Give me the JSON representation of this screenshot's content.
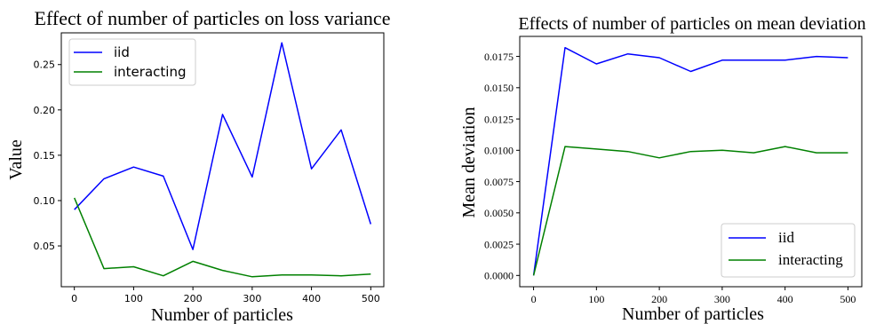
{
  "chart_data": [
    {
      "type": "line",
      "title": "Effect of number of particles on loss variance",
      "xlabel": "Number of particles",
      "ylabel": "Value",
      "x": [
        0,
        50,
        100,
        150,
        200,
        250,
        300,
        350,
        400,
        450,
        500
      ],
      "xlim": [
        -22,
        522
      ],
      "ylim": [
        0.005,
        0.285
      ],
      "xticks": [
        0,
        100,
        200,
        300,
        400,
        500
      ],
      "yticks": [
        0.05,
        0.1,
        0.15,
        0.2,
        0.25
      ],
      "xtick_labels": [
        "0",
        "100",
        "200",
        "300",
        "400",
        "500"
      ],
      "ytick_labels": [
        "0.05",
        "0.10",
        "0.15",
        "0.20",
        "0.25"
      ],
      "grid": false,
      "legend_position": "top-left",
      "series": [
        {
          "name": "iid",
          "color": "#0000ff",
          "values": [
            0.09,
            0.124,
            0.137,
            0.127,
            0.046,
            0.195,
            0.126,
            0.274,
            0.135,
            0.178,
            0.074
          ]
        },
        {
          "name": "interacting",
          "color": "#008000",
          "values": [
            0.103,
            0.025,
            0.027,
            0.017,
            0.033,
            0.023,
            0.016,
            0.018,
            0.018,
            0.017,
            0.019
          ]
        }
      ]
    },
    {
      "type": "line",
      "title": "Effects of number of particles on mean deviation",
      "xlabel": "Number of particles",
      "ylabel": "Mean deviation",
      "x": [
        0,
        50,
        100,
        150,
        200,
        250,
        300,
        350,
        400,
        450,
        500
      ],
      "xlim": [
        -22,
        522
      ],
      "ylim": [
        -0.0009,
        0.0191
      ],
      "xticks": [
        0,
        100,
        200,
        300,
        400,
        500
      ],
      "yticks": [
        0.0,
        0.0025,
        0.005,
        0.0075,
        0.01,
        0.0125,
        0.015,
        0.0175
      ],
      "xtick_labels": [
        "0",
        "100",
        "200",
        "300",
        "400",
        "500"
      ],
      "ytick_labels": [
        "0.0000",
        "0.0025",
        "0.0050",
        "0.0075",
        "0.0100",
        "0.0125",
        "0.0150",
        "0.0175"
      ],
      "grid": false,
      "legend_position": "bottom-right",
      "series": [
        {
          "name": "iid",
          "color": "#0000ff",
          "values": [
            0.0,
            0.0182,
            0.0169,
            0.0177,
            0.0174,
            0.0163,
            0.0172,
            0.0172,
            0.0172,
            0.0175,
            0.0174
          ]
        },
        {
          "name": "interacting",
          "color": "#008000",
          "values": [
            0.0,
            0.0103,
            0.0101,
            0.0099,
            0.0094,
            0.0099,
            0.01,
            0.0098,
            0.0103,
            0.0098,
            0.0098
          ]
        }
      ]
    }
  ]
}
